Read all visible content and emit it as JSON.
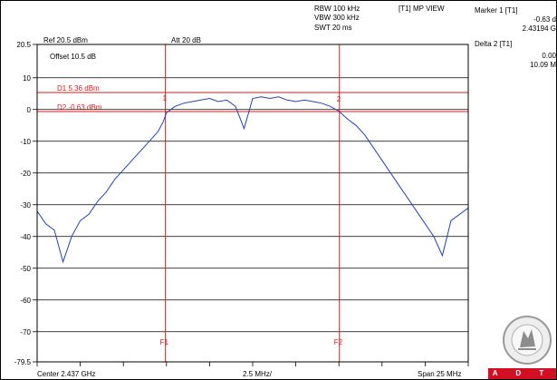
{
  "header": {
    "ref_level": "Ref 20.5 dBm",
    "attenuation": "Att  20 dB",
    "rbw": "RBW 100 kHz",
    "vbw": "VBW 300 kHz",
    "swt": "SWT 20 ms",
    "trace_mode": "[T1] MP VIEW",
    "offset": "Offset 10.5 dB",
    "top_scale": "20.5"
  },
  "markers": {
    "marker1_title": "Marker 1 [T1]",
    "marker1_level": "-0.63 d",
    "marker1_freq": "2.43194 G",
    "delta2_title": "Delta 2 [T1]",
    "delta2_level": "0.00",
    "delta2_freq": "10.09 M"
  },
  "display_lines": {
    "d1_label": "D1 5.36 dBm",
    "d1_value": 5.36,
    "d2_label": "D2 -0.63 dBm",
    "d2_value": -0.63,
    "f1_label": "F1",
    "f2_label": "F2",
    "m1_label": "1",
    "m2_label": "2"
  },
  "footer": {
    "center": "Center 2.437 GHz",
    "per_div": "2.5 MHz/",
    "span": "Span 25 MHz"
  },
  "logo": {
    "text": "A D T",
    "seal_text": "BUREAU VERITAS 1828"
  },
  "colors": {
    "trace": "#2343b8",
    "lines": "#e01818",
    "grid": "#000000",
    "logo": "#d30f24"
  },
  "chart_data": {
    "type": "line",
    "title": "",
    "xlabel": "",
    "ylabel": "",
    "x_unit": "GHz",
    "y_unit": "dBm",
    "xlim": [
      2.4245,
      2.4495
    ],
    "ylim": [
      -79.5,
      20.5
    ],
    "y_ticks": [
      {
        "value": 20.5,
        "label": "20.5"
      },
      {
        "value": 10,
        "label": "10"
      },
      {
        "value": 0,
        "label": "0"
      },
      {
        "value": -10,
        "label": "-10"
      },
      {
        "value": -20,
        "label": "-20"
      },
      {
        "value": -30,
        "label": "-30"
      },
      {
        "value": -40,
        "label": "-40"
      },
      {
        "value": -50,
        "label": "-50"
      },
      {
        "value": -60,
        "label": "-60"
      },
      {
        "value": -70,
        "label": "-70"
      },
      {
        "value": -79.5,
        "label": "-79.5"
      }
    ],
    "grid": true,
    "threshold_lines": [
      {
        "name": "D1",
        "value": 5.36
      },
      {
        "name": "D2",
        "value": -0.63
      }
    ],
    "frequency_lines": [
      {
        "name": "F1",
        "value": 2.43194
      },
      {
        "name": "F2",
        "value": 2.44203
      }
    ],
    "series": [
      {
        "x": [
          2.4245,
          2.425,
          2.4255,
          2.426,
          2.4265,
          2.427,
          2.4275,
          2.428,
          2.4285,
          2.429,
          2.4295,
          2.43,
          2.4305,
          2.431,
          2.4315,
          2.4318,
          2.432,
          2.4325,
          2.433,
          2.4335,
          2.434,
          2.4345,
          2.435,
          2.4355,
          2.436,
          2.4365,
          2.437,
          2.4375,
          2.438,
          2.4385,
          2.439,
          2.4395,
          2.44,
          2.4405,
          2.441,
          2.4415,
          2.442,
          2.4425,
          2.443,
          2.4435,
          2.444,
          2.4445,
          2.445,
          2.4455,
          2.446,
          2.4465,
          2.447,
          2.4475,
          2.448,
          2.4485,
          2.449,
          2.4495
        ],
        "y": [
          -32,
          -36,
          -38,
          -48,
          -40,
          -35,
          -33,
          -29,
          -26,
          -22,
          -19,
          -16,
          -13,
          -10,
          -7,
          -4,
          -1,
          1,
          2,
          2.5,
          3,
          3.5,
          2.5,
          3,
          1,
          -6,
          3.5,
          4,
          3.5,
          4,
          3,
          2.5,
          3,
          2.5,
          2,
          1,
          -0.5,
          -3,
          -5,
          -8,
          -12,
          -16,
          -20,
          -24,
          -28,
          -32,
          -36,
          -40,
          -46,
          -35,
          -33,
          -31
        ]
      }
    ]
  }
}
